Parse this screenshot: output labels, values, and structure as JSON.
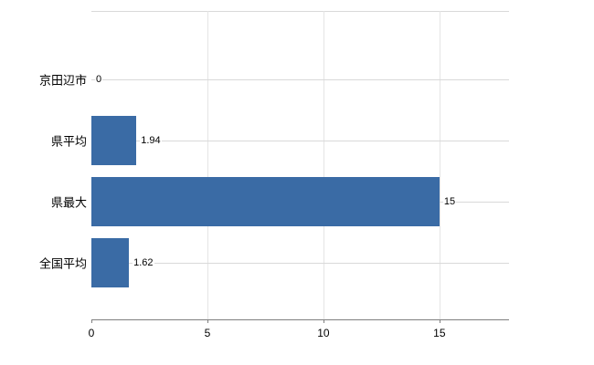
{
  "chart_data": {
    "type": "bar",
    "orientation": "horizontal",
    "title": "",
    "categories": [
      "京田辺市",
      "県平均",
      "県最大",
      "全国平均"
    ],
    "values": [
      0,
      1.94,
      15,
      1.62
    ],
    "value_labels": [
      "0",
      "1.94",
      "15",
      "1.62"
    ],
    "xlim": [
      0,
      18
    ],
    "xticks": [
      0,
      5,
      10,
      15
    ],
    "xtick_labels": [
      "0",
      "5",
      "10",
      "15"
    ],
    "bar_color": "#3a6ba5",
    "gridline_color": "#d9d9d9",
    "axis_color": "#7f7f7f",
    "legend_position": "none",
    "grid": "on"
  }
}
